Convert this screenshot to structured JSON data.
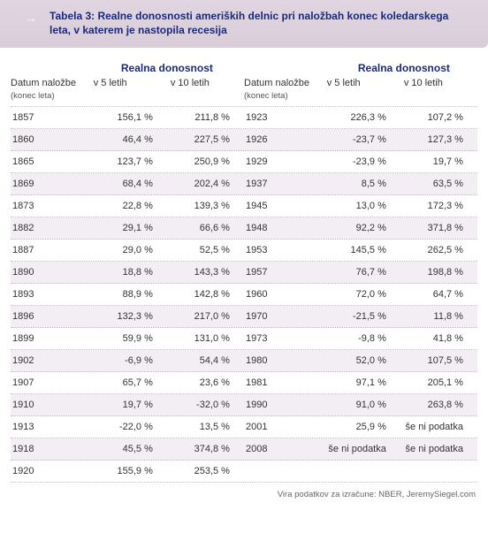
{
  "header": {
    "arrow": "→",
    "title": "Tabela 3: Realne donosnosti ameriških delnic pri naložbah konec koledarskega leta, v katerem je nastopila recesija"
  },
  "group_header": "Realna donosnost",
  "col_headers": {
    "date": "Datum naložbe",
    "date_sub": "(konec leta)",
    "v5": "v 5 letih",
    "v10": "v 10 letih"
  },
  "left_rows": [
    {
      "date": "1857",
      "v5": "156,1 %",
      "v10": "211,8 %"
    },
    {
      "date": "1860",
      "v5": "46,4 %",
      "v10": "227,5 %"
    },
    {
      "date": "1865",
      "v5": "123,7 %",
      "v10": "250,9 %"
    },
    {
      "date": "1869",
      "v5": "68,4 %",
      "v10": "202,4 %"
    },
    {
      "date": "1873",
      "v5": "22,8 %",
      "v10": "139,3 %"
    },
    {
      "date": "1882",
      "v5": "29,1 %",
      "v10": "66,6 %"
    },
    {
      "date": "1887",
      "v5": "29,0 %",
      "v10": "52,5 %"
    },
    {
      "date": "1890",
      "v5": "18,8 %",
      "v10": "143,3 %"
    },
    {
      "date": "1893",
      "v5": "88,9 %",
      "v10": "142,8 %"
    },
    {
      "date": "1896",
      "v5": "132,3 %",
      "v10": "217,0 %"
    },
    {
      "date": "1899",
      "v5": "59,9 %",
      "v10": "131,0 %"
    },
    {
      "date": "1902",
      "v5": "-6,9 %",
      "v10": "54,4 %"
    },
    {
      "date": "1907",
      "v5": "65,7 %",
      "v10": "23,6 %"
    },
    {
      "date": "1910",
      "v5": "19,7 %",
      "v10": "-32,0 %"
    },
    {
      "date": "1913",
      "v5": "-22,0 %",
      "v10": "13,5 %"
    },
    {
      "date": "1918",
      "v5": "45,5 %",
      "v10": "374,8 %"
    },
    {
      "date": "1920",
      "v5": "155,9 %",
      "v10": "253,5 %"
    }
  ],
  "right_rows": [
    {
      "date": "1923",
      "v5": "226,3 %",
      "v10": "107,2 %"
    },
    {
      "date": "1926",
      "v5": "-23,7 %",
      "v10": "127,3 %"
    },
    {
      "date": "1929",
      "v5": "-23,9 %",
      "v10": "19,7 %"
    },
    {
      "date": "1937",
      "v5": "8,5 %",
      "v10": "63,5 %"
    },
    {
      "date": "1945",
      "v5": "13,0 %",
      "v10": "172,3 %"
    },
    {
      "date": "1948",
      "v5": "92,2 %",
      "v10": "371,8 %"
    },
    {
      "date": "1953",
      "v5": "145,5 %",
      "v10": "262,5 %"
    },
    {
      "date": "1957",
      "v5": "76,7 %",
      "v10": "198,8 %"
    },
    {
      "date": "1960",
      "v5": "72,0 %",
      "v10": "64,7 %"
    },
    {
      "date": "1970",
      "v5": "-21,5 %",
      "v10": "11,8 %"
    },
    {
      "date": "1973",
      "v5": "-9,8 %",
      "v10": "41,8 %"
    },
    {
      "date": "1980",
      "v5": "52,0 %",
      "v10": "107,5 %"
    },
    {
      "date": "1981",
      "v5": "97,1 %",
      "v10": "205,1 %"
    },
    {
      "date": "1990",
      "v5": "91,0 %",
      "v10": "263,8 %"
    },
    {
      "date": "2001",
      "v5": "25,9 %",
      "v10": "še ni podatka"
    },
    {
      "date": "2008",
      "v5": "še ni podatka",
      "v10": "še ni podatka"
    },
    {
      "date": "",
      "v5": "",
      "v10": ""
    }
  ],
  "footer": "Vira podatkov za izračune: NBER, JeremySiegel.com",
  "colors": {
    "header_bg_top": "#e0d5e0",
    "header_bg_bottom": "#d8cdd8",
    "title_color": "#1a2a7a",
    "row_alt_bg": "#f3eef3",
    "border_color": "#bfbfbf",
    "text_color": "#333333",
    "footer_color": "#666666"
  }
}
